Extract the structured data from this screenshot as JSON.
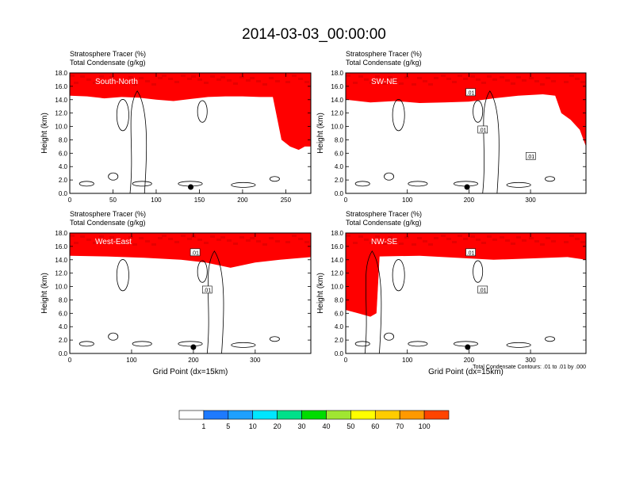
{
  "title": "2014-03-03_00:00:00",
  "colors": {
    "levels": [
      "#ffffff",
      "#1e7aff",
      "#1ea0ff",
      "#00e6ff",
      "#00e08a",
      "#00dc00",
      "#a0e632",
      "#ffff00",
      "#ffcc00",
      "#ff9900",
      "#ff4400",
      "#ff0000"
    ],
    "contour": "#000000"
  },
  "chart_data": [
    {
      "type": "heatmap",
      "panel_label": "South-North",
      "label_top": "Stratosphere Tracer   (%)",
      "label_bottom": "Total Condensate   (g/kg)",
      "ylabel": "Height (km)",
      "xlabel": "",
      "xlim": [
        0,
        279
      ],
      "ylim": [
        0,
        18
      ],
      "xticks": [
        0,
        50,
        100,
        150,
        200,
        250
      ],
      "yticks": [
        "0.0",
        "2.0",
        "4.0",
        "6.0",
        "8.0",
        "10.0",
        "12.0",
        "14.0",
        "16.0",
        "18.0"
      ],
      "tropopause_km": [
        [
          0,
          15.6
        ],
        [
          20,
          15.5
        ],
        [
          40,
          15.2
        ],
        [
          60,
          15.4
        ],
        [
          80,
          15.3
        ],
        [
          100,
          15.0
        ],
        [
          120,
          14.8
        ],
        [
          140,
          15.1
        ],
        [
          160,
          15.4
        ],
        [
          180,
          15.5
        ],
        [
          200,
          15.5
        ],
        [
          220,
          15.4
        ],
        [
          235,
          15.4
        ],
        [
          245,
          9
        ],
        [
          255,
          8
        ],
        [
          265,
          7.5
        ],
        [
          272,
          8
        ],
        [
          279,
          8
        ]
      ],
      "contour_labels": [],
      "marker_x": 140
    },
    {
      "type": "heatmap",
      "panel_label": "SW-NE",
      "label_top": "Stratosphere Tracer   (%)",
      "label_bottom": "Total Condensate   (g/kg)",
      "ylabel": "Height (km)",
      "xlabel": "",
      "xlim": [
        0,
        390
      ],
      "ylim": [
        0,
        18
      ],
      "xticks": [
        0,
        100,
        200,
        300
      ],
      "yticks": [
        "0.0",
        "2.0",
        "4.0",
        "6.0",
        "8.0",
        "10.0",
        "12.0",
        "14.0",
        "16.0",
        "18.0"
      ],
      "tropopause_km": [
        [
          0,
          15.0
        ],
        [
          40,
          14.6
        ],
        [
          80,
          14.8
        ],
        [
          120,
          14.5
        ],
        [
          160,
          14.6
        ],
        [
          200,
          14.7
        ],
        [
          240,
          15.2
        ],
        [
          280,
          15.6
        ],
        [
          320,
          15.8
        ],
        [
          340,
          15.6
        ],
        [
          350,
          13.0
        ],
        [
          365,
          12.0
        ],
        [
          380,
          10.5
        ],
        [
          390,
          8.0
        ]
      ],
      "contour_labels": [
        ".01",
        ".01",
        ".01"
      ],
      "marker_x": 197
    },
    {
      "type": "heatmap",
      "panel_label": "West-East",
      "label_top": "Stratosphere Tracer   (%)",
      "label_bottom": "Total Condensate   (g/kg)",
      "ylabel": "Height (km)",
      "xlabel": "Grid Point (dx=15km)",
      "xlim": [
        0,
        390
      ],
      "ylim": [
        0,
        18
      ],
      "xticks": [
        0,
        100,
        200,
        300
      ],
      "yticks": [
        "0.0",
        "2.0",
        "4.0",
        "6.0",
        "8.0",
        "10.0",
        "12.0",
        "14.0",
        "16.0",
        "18.0"
      ],
      "tropopause_km": [
        [
          0,
          15.6
        ],
        [
          60,
          15.5
        ],
        [
          120,
          15.3
        ],
        [
          180,
          15.0
        ],
        [
          220,
          14.6
        ],
        [
          260,
          13.8
        ],
        [
          300,
          14.6
        ],
        [
          340,
          15.0
        ],
        [
          390,
          15.4
        ]
      ],
      "contour_labels": [
        ".01",
        ".01"
      ],
      "marker_x": 200
    },
    {
      "type": "heatmap",
      "panel_label": "NW-SE",
      "label_top": "Stratosphere Tracer   (%)",
      "label_bottom": "Total Condensate   (g/kg)",
      "ylabel": "Height (km)",
      "xlabel": "Grid Point (dx=15km)",
      "xlim": [
        0,
        390
      ],
      "ylim": [
        0,
        18
      ],
      "xticks": [
        0,
        100,
        200,
        300
      ],
      "yticks": [
        "0.0",
        "2.0",
        "4.0",
        "6.0",
        "8.0",
        "10.0",
        "12.0",
        "14.0",
        "16.0",
        "18.0"
      ],
      "tropopause_km": [
        [
          0,
          7.5
        ],
        [
          20,
          7.0
        ],
        [
          40,
          6.5
        ],
        [
          50,
          7.0
        ],
        [
          55,
          15.5
        ],
        [
          120,
          15.6
        ],
        [
          180,
          15.3
        ],
        [
          240,
          15.0
        ],
        [
          300,
          15.2
        ],
        [
          360,
          15.4
        ],
        [
          390,
          15.0
        ]
      ],
      "contour_labels": [
        ".01",
        ".01"
      ],
      "contour_caption": "Total Condensate Contours: .01 to .01 by .000",
      "marker_x": 198
    }
  ],
  "legend": {
    "labels": [
      "1",
      "5",
      "10",
      "20",
      "30",
      "40",
      "50",
      "60",
      "70",
      "100"
    ]
  }
}
